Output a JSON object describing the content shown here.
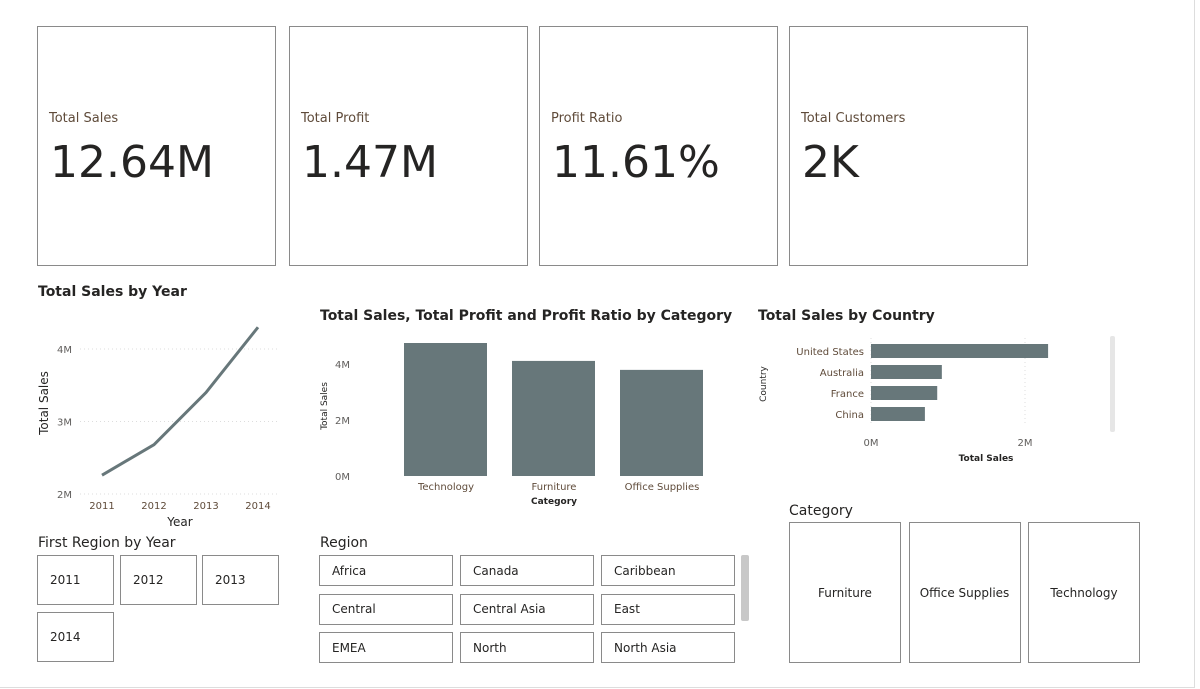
{
  "kpis": [
    {
      "label": "Total Sales",
      "value": "12.64M"
    },
    {
      "label": "Total Profit",
      "value": "1.47M"
    },
    {
      "label": "Profit Ratio",
      "value": "11.61%"
    },
    {
      "label": "Total Customers",
      "value": "2K"
    }
  ],
  "chart_data": [
    {
      "type": "line",
      "title": "Total Sales by Year",
      "xlabel": "Year",
      "ylabel": "Total Sales",
      "x": [
        "2011",
        "2012",
        "2013",
        "2014"
      ],
      "values": [
        2.26,
        2.68,
        3.4,
        4.3
      ],
      "unit": "M",
      "yticks": [
        "2M",
        "3M",
        "4M"
      ],
      "ylim": [
        2,
        4.3
      ],
      "grid": true,
      "color": "#67777a"
    },
    {
      "type": "bar",
      "title": "Total Sales, Total Profit and Profit Ratio by Category",
      "xlabel": "Category",
      "ylabel": "Total Sales",
      "categories": [
        "Technology",
        "Furniture",
        "Office Supplies"
      ],
      "values": [
        4.75,
        4.11,
        3.79
      ],
      "unit": "M",
      "yticks": [
        "0M",
        "2M",
        "4M"
      ],
      "ylim": [
        0,
        4.8
      ],
      "color": "#67777a"
    },
    {
      "type": "bar",
      "orientation": "horizontal",
      "title": "Total Sales by Country",
      "xlabel": "Total Sales",
      "ylabel": "Country",
      "categories": [
        "United States",
        "Australia",
        "France",
        "China"
      ],
      "values": [
        2.3,
        0.92,
        0.86,
        0.7
      ],
      "unit": "M",
      "xticks": [
        "0M",
        "2M"
      ],
      "color": "#67777a"
    }
  ],
  "year_slicer": {
    "title": "First Region by Year",
    "items": [
      "2011",
      "2012",
      "2013",
      "2014"
    ]
  },
  "region_slicer": {
    "title": "Region",
    "items": [
      "Africa",
      "Canada",
      "Caribbean",
      "Central",
      "Central Asia",
      "East",
      "EMEA",
      "North",
      "North Asia"
    ]
  },
  "category_slicer": {
    "title": "Category",
    "items": [
      "Furniture",
      "Office Supplies",
      "Technology"
    ]
  }
}
